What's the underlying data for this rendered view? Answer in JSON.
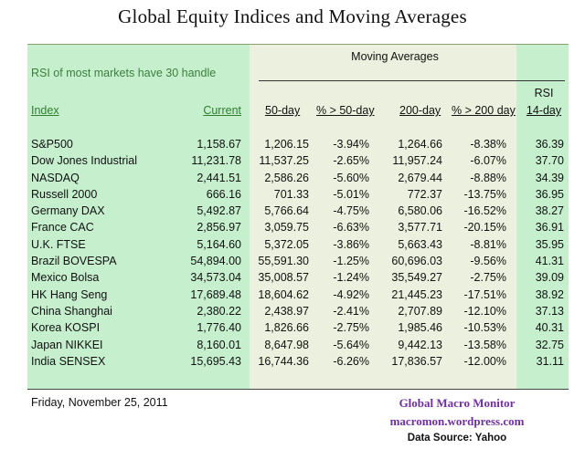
{
  "title": "Global Equity Indices and Moving Averages",
  "note": "RSI of most markets have 30 handle",
  "moving_averages_label": "Moving Averages",
  "headers": {
    "index": "Index",
    "current": "Current",
    "ma50": "50-day",
    "pct50": "% > 50-day",
    "ma200": "200-day",
    "pct200": "% > 200 day",
    "rsi_line1": "RSI",
    "rsi_line2": "14-day"
  },
  "colors": {
    "green_band": "#c6efce",
    "light_band": "#ebf1de",
    "green_text": "#2f7f2f",
    "credit_purple": "#7030a0"
  },
  "chart_data": {
    "type": "table",
    "title": "Global Equity Indices and Moving Averages",
    "columns": [
      "Index",
      "Current",
      "50-day",
      "% > 50-day",
      "200-day",
      "% > 200 day",
      "RSI 14-day"
    ],
    "rows": [
      [
        "S&P500",
        "1,158.67",
        "1,206.15",
        "-3.94%",
        "1,264.66",
        "-8.38%",
        "36.39"
      ],
      [
        "Dow Jones Industrial",
        "11,231.78",
        "11,537.25",
        "-2.65%",
        "11,957.24",
        "-6.07%",
        "37.70"
      ],
      [
        "NASDAQ",
        "2,441.51",
        "2,586.26",
        "-5.60%",
        "2,679.44",
        "-8.88%",
        "34.39"
      ],
      [
        "Russell 2000",
        "666.16",
        "701.33",
        "-5.01%",
        "772.37",
        "-13.75%",
        "36.95"
      ],
      [
        "Germany DAX",
        "5,492.87",
        "5,766.64",
        "-4.75%",
        "6,580.06",
        "-16.52%",
        "38.27"
      ],
      [
        "France CAC",
        "2,856.97",
        "3,059.75",
        "-6.63%",
        "3,577.71",
        "-20.15%",
        "36.91"
      ],
      [
        "U.K. FTSE",
        "5,164.60",
        "5,372.05",
        "-3.86%",
        "5,663.43",
        "-8.81%",
        "35.95"
      ],
      [
        "Brazil BOVESPA",
        "54,894.00",
        "55,591.30",
        "-1.25%",
        "60,696.03",
        "-9.56%",
        "41.31"
      ],
      [
        "Mexico Bolsa",
        "34,573.04",
        "35,008.57",
        "-1.24%",
        "35,549.27",
        "-2.75%",
        "39.09"
      ],
      [
        "HK  Hang Seng",
        "17,689.48",
        "18,604.62",
        "-4.92%",
        "21,445.23",
        "-17.51%",
        "38.92"
      ],
      [
        "China Shanghai",
        "2,380.22",
        "2,438.97",
        "-2.41%",
        "2,707.89",
        "-12.10%",
        "37.13"
      ],
      [
        "Korea KOSPI",
        "1,776.40",
        "1,826.66",
        "-2.75%",
        "1,985.46",
        "-10.53%",
        "40.31"
      ],
      [
        "Japan NIKKEI",
        "8,160.01",
        "8,647.98",
        "-5.64%",
        "9,442.13",
        "-13.58%",
        "32.75"
      ],
      [
        "India SENSEX",
        "15,695.43",
        "16,744.36",
        "-6.26%",
        "17,836.57",
        "-12.00%",
        "31.11"
      ]
    ]
  },
  "footer": {
    "date": "Friday, November 25, 2011",
    "credit_line1": "Global Macro Monitor",
    "credit_line2": "macromon.wordpress.com",
    "credit_line3": "Data Source: Yahoo"
  }
}
